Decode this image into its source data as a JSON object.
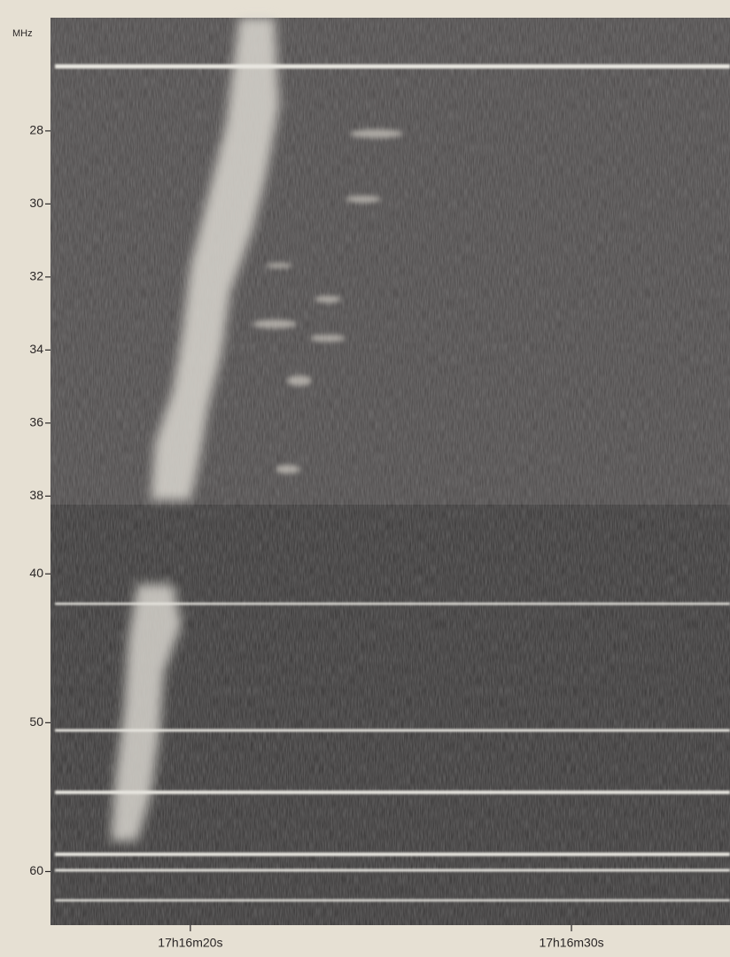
{
  "chart_data": [
    {
      "type": "spectrogram",
      "y_label": "MHz",
      "ylim": [
        24.9,
        38.5
      ],
      "yticks": [
        28,
        30,
        32,
        34,
        36,
        38
      ],
      "xlim": [
        16.33,
        34.16
      ],
      "xticks": []
    },
    {
      "type": "spectrogram",
      "ylim": [
        36.0,
        63.6
      ],
      "yticks": [
        40,
        50,
        60
      ],
      "xlim": [
        16.33,
        34.16
      ],
      "xticks": [
        {
          "value": 20,
          "label": "17h16m20s"
        },
        {
          "value": 30,
          "label": "17h16m30s"
        }
      ]
    }
  ]
}
